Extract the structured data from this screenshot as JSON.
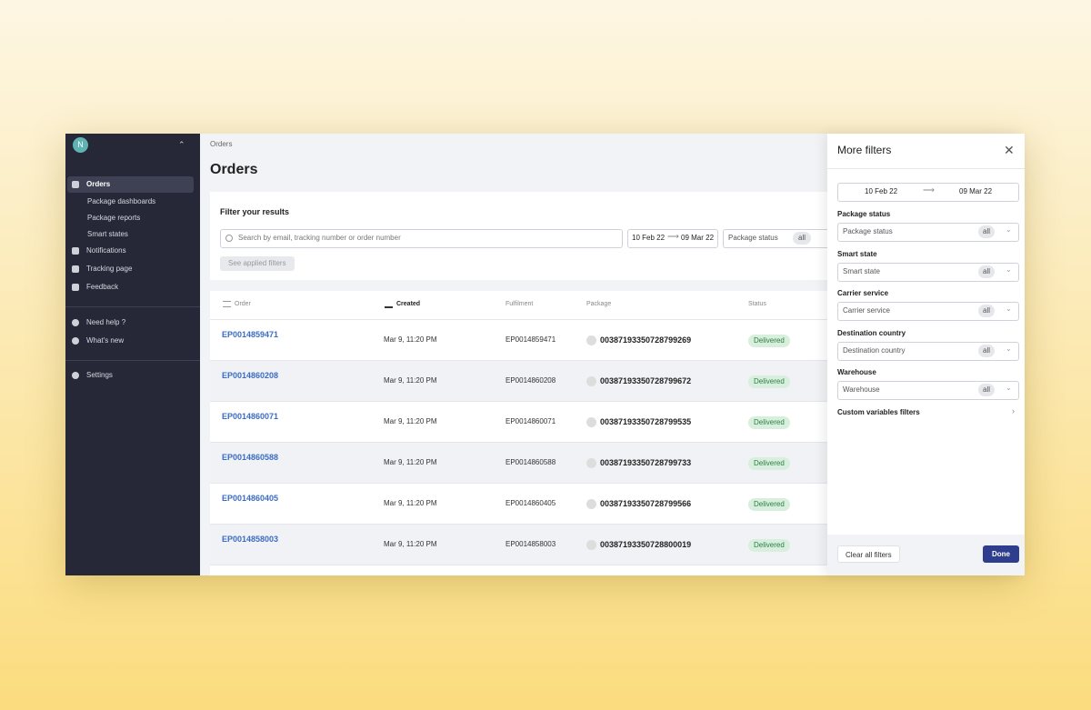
{
  "sidebar": {
    "avatar": "N",
    "nav": [
      "Orders",
      "Package dashboards",
      "Package reports",
      "Smart states",
      "Notifications",
      "Tracking page",
      "Feedback"
    ],
    "help": [
      "Need help ?",
      "What's new"
    ],
    "settings": "Settings"
  },
  "breadcrumb": "Orders",
  "title": "Orders",
  "filter": {
    "title": "Filter your results",
    "search_placeholder": "Search by email, tracking number or order number",
    "date_from": "10 Feb 22",
    "date_to": "09 Mar 22",
    "status_label": "Package status",
    "status_value": "all",
    "applied_button": "See applied filters"
  },
  "table": {
    "columns": [
      "Order",
      "Created",
      "Fulfilment",
      "Package",
      "Status"
    ],
    "rows": [
      [
        "EP0014859471",
        "Mar 9, 11:20 PM",
        "EP0014859471",
        "00387193350728799269",
        "Delivered"
      ],
      [
        "EP0014860208",
        "Mar 9, 11:20 PM",
        "EP0014860208",
        "00387193350728799672",
        "Delivered"
      ],
      [
        "EP0014860071",
        "Mar 9, 11:20 PM",
        "EP0014860071",
        "00387193350728799535",
        "Delivered"
      ],
      [
        "EP0014860588",
        "Mar 9, 11:20 PM",
        "EP0014860588",
        "00387193350728799733",
        "Delivered"
      ],
      [
        "EP0014860405",
        "Mar 9, 11:20 PM",
        "EP0014860405",
        "00387193350728799566",
        "Delivered"
      ],
      [
        "EP0014858003",
        "Mar 9, 11:20 PM",
        "EP0014858003",
        "00387193350728800019",
        "Delivered"
      ]
    ]
  },
  "panel": {
    "title": "More filters",
    "date_from": "10 Feb 22",
    "date_to": "09 Mar 22",
    "filters": [
      {
        "label": "Package status",
        "placeholder": "Package status",
        "value": "all"
      },
      {
        "label": "Smart state",
        "placeholder": "Smart state",
        "value": "all"
      },
      {
        "label": "Carrier service",
        "placeholder": "Carrier service",
        "value": "all"
      },
      {
        "label": "Destination country",
        "placeholder": "Destination country",
        "value": "all"
      },
      {
        "label": "Warehouse",
        "placeholder": "Warehouse",
        "value": "all"
      }
    ],
    "custom": "Custom variables filters",
    "clear": "Clear all filters",
    "done": "Done"
  }
}
